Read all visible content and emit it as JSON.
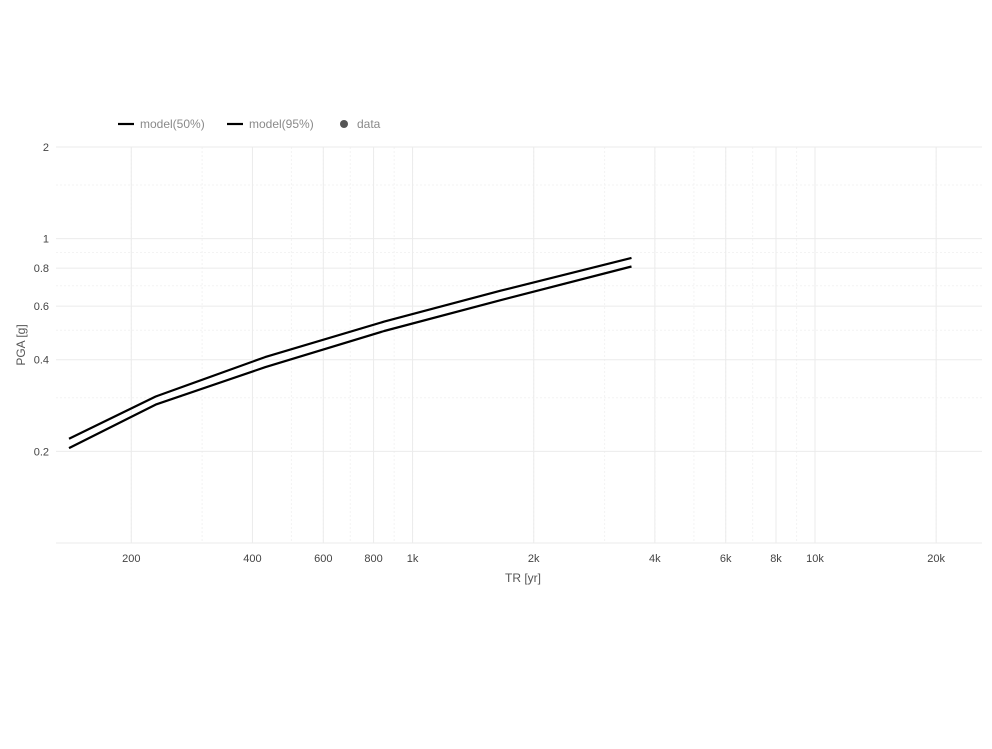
{
  "chart_data": {
    "type": "line",
    "xlabel": "TR [yr]",
    "ylabel": "PGA [g]",
    "x_scale": "log",
    "y_scale": "log",
    "xlim": [
      130,
      26000
    ],
    "ylim": [
      0.1,
      2
    ],
    "x_ticks": [
      {
        "value": 200,
        "label": "200"
      },
      {
        "value": 400,
        "label": "400"
      },
      {
        "value": 600,
        "label": "600"
      },
      {
        "value": 800,
        "label": "800"
      },
      {
        "value": 1000,
        "label": "1k"
      },
      {
        "value": 2000,
        "label": "2k"
      },
      {
        "value": 4000,
        "label": "4k"
      },
      {
        "value": 6000,
        "label": "6k"
      },
      {
        "value": 8000,
        "label": "8k"
      },
      {
        "value": 10000,
        "label": "10k"
      },
      {
        "value": 20000,
        "label": "20k"
      }
    ],
    "y_ticks": [
      {
        "value": 0.2,
        "label": "0.2"
      },
      {
        "value": 0.4,
        "label": "0.4"
      },
      {
        "value": 0.6,
        "label": "0.6"
      },
      {
        "value": 0.8,
        "label": "0.8"
      },
      {
        "value": 1,
        "label": "1"
      },
      {
        "value": 2,
        "label": "2"
      }
    ],
    "grid": true,
    "legend_position": "top-left",
    "legend": [
      {
        "name": "model(50%)",
        "symbol": "line",
        "color": "#000000"
      },
      {
        "name": "model(95%)",
        "symbol": "line",
        "color": "#000000"
      },
      {
        "name": "data",
        "symbol": "point",
        "color": "#555555"
      }
    ],
    "series": [
      {
        "name": "model(50%)",
        "color": "#000000",
        "x": [
          140,
          230,
          430,
          850,
          1650,
          3500
        ],
        "y": [
          0.205,
          0.285,
          0.378,
          0.497,
          0.627,
          0.81
        ]
      },
      {
        "name": "model(95%)",
        "color": "#000000",
        "x": [
          140,
          230,
          430,
          850,
          1650,
          3500
        ],
        "y": [
          0.22,
          0.303,
          0.408,
          0.534,
          0.674,
          0.864
        ]
      },
      {
        "name": "data",
        "color": "#555555",
        "x": [],
        "y": []
      }
    ]
  }
}
